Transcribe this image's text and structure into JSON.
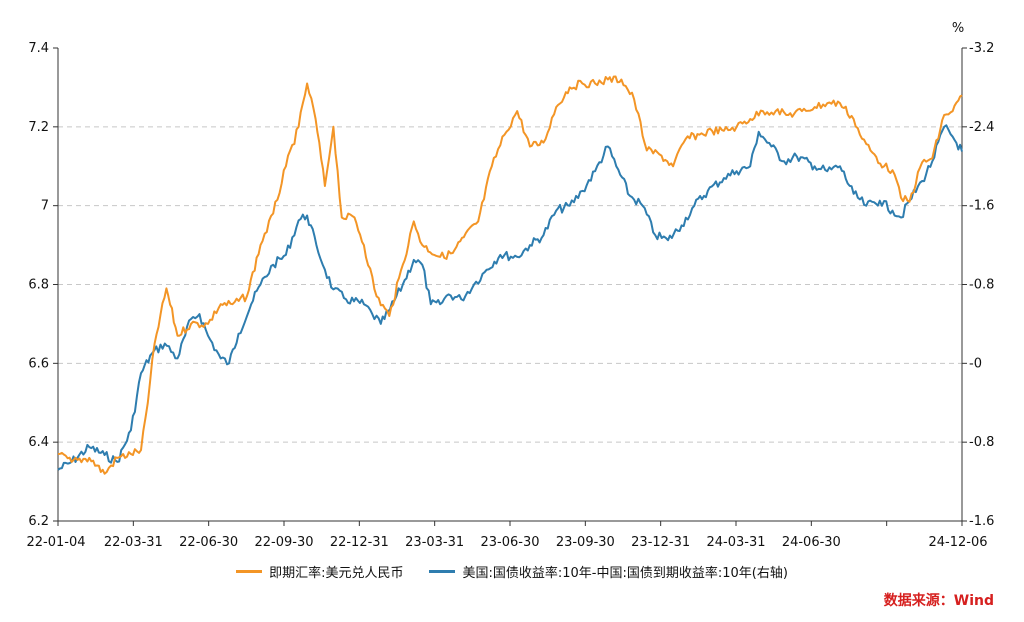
{
  "source_note": "数据来源：Wind",
  "colors": {
    "orange": "#F39526",
    "blue": "#2E7DAF",
    "source": "#D6201F",
    "grid": "#c8c8c8",
    "axis": "#333333"
  },
  "chart_data": {
    "type": "line",
    "x_tick_labels": [
      "22-01-04",
      "22-03-31",
      "22-06-30",
      "22-09-30",
      "22-12-31",
      "23-03-31",
      "23-06-30",
      "23-09-30",
      "23-12-31",
      "24-03-31",
      "24-06-30",
      "",
      "24-12-06"
    ],
    "left_axis": {
      "ticks": [
        "7.4",
        "7.2",
        "7",
        "6.8",
        "6.6",
        "6.4",
        "6.2"
      ],
      "ylim": [
        6.2,
        7.4
      ]
    },
    "right_axis": {
      "unit": "%",
      "ticks": [
        "3.2",
        "2.4",
        "1.6",
        "0.8",
        "0",
        "-0.8",
        "-1.6"
      ],
      "ylim": [
        -1.6,
        3.2
      ]
    },
    "grid": true,
    "legend_position": "bottom-center",
    "series": [
      {
        "name": "即期汇率:美元兑人民币",
        "axis": "left",
        "points": [
          [
            "22-01-04",
            6.37
          ],
          [
            "22-01-20",
            6.35
          ],
          [
            "22-02-10",
            6.36
          ],
          [
            "22-02-28",
            6.32
          ],
          [
            "22-03-15",
            6.36
          ],
          [
            "22-03-31",
            6.37
          ],
          [
            "22-04-12",
            6.38
          ],
          [
            "22-04-20",
            6.5
          ],
          [
            "22-04-28",
            6.65
          ],
          [
            "22-05-12",
            6.79
          ],
          [
            "22-05-25",
            6.67
          ],
          [
            "22-06-10",
            6.7
          ],
          [
            "22-06-30",
            6.7
          ],
          [
            "22-07-15",
            6.75
          ],
          [
            "22-07-29",
            6.75
          ],
          [
            "22-08-15",
            6.77
          ],
          [
            "22-08-31",
            6.9
          ],
          [
            "22-09-15",
            6.98
          ],
          [
            "22-09-30",
            7.1
          ],
          [
            "22-10-15",
            7.2
          ],
          [
            "22-10-25",
            7.31
          ],
          [
            "22-11-04",
            7.22
          ],
          [
            "22-11-15",
            7.05
          ],
          [
            "22-11-25",
            7.2
          ],
          [
            "22-12-05",
            6.97
          ],
          [
            "22-12-20",
            6.97
          ],
          [
            "22-12-31",
            6.9
          ],
          [
            "23-01-15",
            6.77
          ],
          [
            "23-01-30",
            6.72
          ],
          [
            "23-02-15",
            6.85
          ],
          [
            "23-02-28",
            6.96
          ],
          [
            "23-03-10",
            6.9
          ],
          [
            "23-03-31",
            6.87
          ],
          [
            "23-04-15",
            6.88
          ],
          [
            "23-04-28",
            6.92
          ],
          [
            "23-05-15",
            6.96
          ],
          [
            "23-05-31",
            7.1
          ],
          [
            "23-06-15",
            7.18
          ],
          [
            "23-06-30",
            7.24
          ],
          [
            "23-07-15",
            7.15
          ],
          [
            "23-07-31",
            7.16
          ],
          [
            "23-08-15",
            7.25
          ],
          [
            "23-08-31",
            7.3
          ],
          [
            "23-09-15",
            7.31
          ],
          [
            "23-09-30",
            7.31
          ],
          [
            "23-10-15",
            7.32
          ],
          [
            "23-10-31",
            7.32
          ],
          [
            "23-11-15",
            7.27
          ],
          [
            "23-11-30",
            7.14
          ],
          [
            "23-12-15",
            7.13
          ],
          [
            "23-12-31",
            7.1
          ],
          [
            "24-01-15",
            7.17
          ],
          [
            "24-01-31",
            7.18
          ],
          [
            "24-02-15",
            7.19
          ],
          [
            "24-02-29",
            7.19
          ],
          [
            "24-03-15",
            7.2
          ],
          [
            "24-03-31",
            7.22
          ],
          [
            "24-04-15",
            7.24
          ],
          [
            "24-04-30",
            7.24
          ],
          [
            "24-05-15",
            7.23
          ],
          [
            "24-05-31",
            7.24
          ],
          [
            "24-06-15",
            7.25
          ],
          [
            "24-06-30",
            7.26
          ],
          [
            "24-07-15",
            7.26
          ],
          [
            "24-07-31",
            7.22
          ],
          [
            "24-08-10",
            7.17
          ],
          [
            "24-08-20",
            7.14
          ],
          [
            "24-09-05",
            7.1
          ],
          [
            "24-09-15",
            7.09
          ],
          [
            "24-09-25",
            7.02
          ],
          [
            "24-10-05",
            7.01
          ],
          [
            "24-10-20",
            7.11
          ],
          [
            "24-11-01",
            7.12
          ],
          [
            "24-11-15",
            7.23
          ],
          [
            "24-11-25",
            7.24
          ],
          [
            "24-12-06",
            7.28
          ]
        ]
      },
      {
        "name": "美国:国债收益率:10年-中国:国债到期收益率:10年(右轴)",
        "axis": "right",
        "points": [
          [
            "22-01-04",
            -1.08
          ],
          [
            "22-01-20",
            -1.0
          ],
          [
            "22-02-10",
            -0.85
          ],
          [
            "22-02-28",
            -0.93
          ],
          [
            "22-03-15",
            -1.0
          ],
          [
            "22-03-31",
            -0.68
          ],
          [
            "22-04-12",
            -0.1
          ],
          [
            "22-04-25",
            0.1
          ],
          [
            "22-05-10",
            0.2
          ],
          [
            "22-05-25",
            0.05
          ],
          [
            "22-06-10",
            0.45
          ],
          [
            "22-06-20",
            0.5
          ],
          [
            "22-06-30",
            0.28
          ],
          [
            "22-07-15",
            0.05
          ],
          [
            "22-07-25",
            0.0
          ],
          [
            "22-08-05",
            0.3
          ],
          [
            "22-08-20",
            0.6
          ],
          [
            "22-08-31",
            0.8
          ],
          [
            "22-09-15",
            1.0
          ],
          [
            "22-09-30",
            1.1
          ],
          [
            "22-10-15",
            1.45
          ],
          [
            "22-10-25",
            1.5
          ],
          [
            "22-11-05",
            1.2
          ],
          [
            "22-11-15",
            0.95
          ],
          [
            "22-11-25",
            0.75
          ],
          [
            "22-12-10",
            0.65
          ],
          [
            "22-12-31",
            0.6
          ],
          [
            "23-01-10",
            0.5
          ],
          [
            "23-01-20",
            0.4
          ],
          [
            "23-01-31",
            0.55
          ],
          [
            "23-02-15",
            0.8
          ],
          [
            "23-02-28",
            1.05
          ],
          [
            "23-03-10",
            1.0
          ],
          [
            "23-03-20",
            0.6
          ],
          [
            "23-03-31",
            0.6
          ],
          [
            "23-04-10",
            0.7
          ],
          [
            "23-04-25",
            0.65
          ],
          [
            "23-05-10",
            0.8
          ],
          [
            "23-05-25",
            0.95
          ],
          [
            "23-06-10",
            1.1
          ],
          [
            "23-06-30",
            1.08
          ],
          [
            "23-07-15",
            1.2
          ],
          [
            "23-07-31",
            1.3
          ],
          [
            "23-08-15",
            1.55
          ],
          [
            "23-08-31",
            1.6
          ],
          [
            "23-09-15",
            1.75
          ],
          [
            "23-09-30",
            1.95
          ],
          [
            "23-10-15",
            2.2
          ],
          [
            "23-10-25",
            2.0
          ],
          [
            "23-11-10",
            1.7
          ],
          [
            "23-11-25",
            1.6
          ],
          [
            "23-12-10",
            1.3
          ],
          [
            "23-12-25",
            1.25
          ],
          [
            "24-01-10",
            1.4
          ],
          [
            "24-01-25",
            1.6
          ],
          [
            "24-02-10",
            1.75
          ],
          [
            "24-02-29",
            1.88
          ],
          [
            "24-03-15",
            1.95
          ],
          [
            "24-03-31",
            2.0
          ],
          [
            "24-04-10",
            2.35
          ],
          [
            "24-04-25",
            2.2
          ],
          [
            "24-05-10",
            2.05
          ],
          [
            "24-05-25",
            2.1
          ],
          [
            "24-06-15",
            2.0
          ],
          [
            "24-06-30",
            1.95
          ],
          [
            "24-07-15",
            2.0
          ],
          [
            "24-07-31",
            1.72
          ],
          [
            "24-08-15",
            1.6
          ],
          [
            "24-08-31",
            1.65
          ],
          [
            "24-09-15",
            1.55
          ],
          [
            "24-09-25",
            1.48
          ],
          [
            "24-10-05",
            1.65
          ],
          [
            "24-10-20",
            1.85
          ],
          [
            "24-11-01",
            2.05
          ],
          [
            "24-11-15",
            2.4
          ],
          [
            "24-11-25",
            2.3
          ],
          [
            "24-12-06",
            2.15
          ]
        ]
      }
    ]
  }
}
